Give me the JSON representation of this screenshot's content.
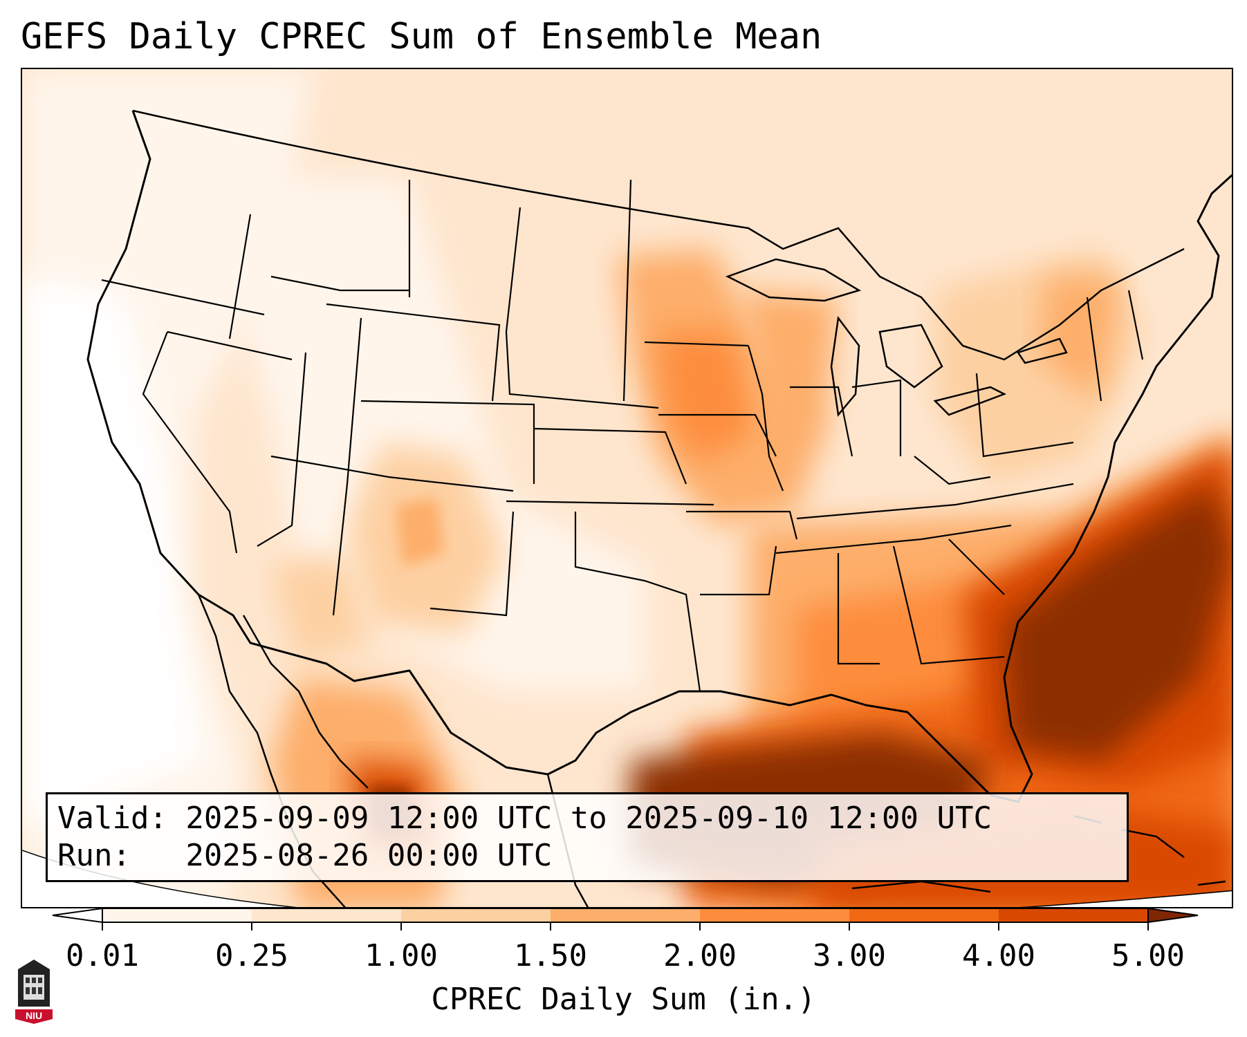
{
  "title": "GEFS Daily CPREC Sum of Ensemble Mean",
  "info": {
    "valid_line": "Valid: 2025-09-09 12:00 UTC to 2025-09-10 12:00 UTC",
    "run_line": "Run:   2025-08-26 00:00 UTC"
  },
  "colorbar": {
    "label": "CPREC Daily Sum (in.)",
    "ticks": [
      "0.01",
      "0.25",
      "1.00",
      "1.50",
      "2.00",
      "3.00",
      "4.00",
      "5.00"
    ],
    "bins": [
      "#fff5eb",
      "#fee6ce",
      "#fdd0a2",
      "#fdae6b",
      "#fd8d3c",
      "#f16913",
      "#d94801",
      "#8c2d04"
    ],
    "extend_colors": {
      "under": "#ffffff",
      "over": "#7f2704"
    }
  },
  "logo": {
    "text": "NIU",
    "color": "#c8102e"
  },
  "map": {
    "domain": "Contiguous United States",
    "field": "CPREC daily sum, ensemble mean"
  }
}
